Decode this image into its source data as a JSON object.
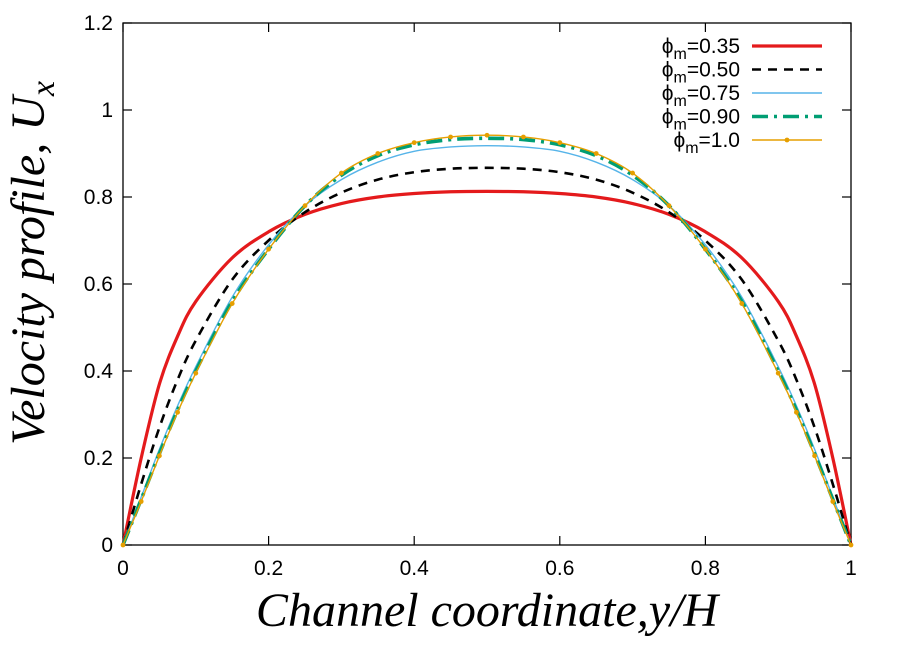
{
  "chart_data": {
    "type": "line",
    "xlabel": "Channel coordinate,y/H",
    "ylabel_main": "Velocity profile, U",
    "ylabel_sub": "x",
    "xlim": [
      0,
      1
    ],
    "ylim": [
      0,
      1.2
    ],
    "xticks": [
      "0",
      "0.2",
      "0.4",
      "0.6",
      "0.8",
      "1"
    ],
    "yticks": [
      "0",
      "0.2",
      "0.4",
      "0.6",
      "0.8",
      "1",
      "1.2"
    ],
    "grid": false,
    "legend_position": "top-right",
    "x": [
      0,
      0.025,
      0.05,
      0.075,
      0.1,
      0.15,
      0.2,
      0.25,
      0.3,
      0.35,
      0.4,
      0.45,
      0.5,
      0.55,
      0.6,
      0.65,
      0.7,
      0.75,
      0.8,
      0.85,
      0.9,
      0.925,
      0.95,
      0.975,
      1
    ],
    "series": [
      {
        "name_symbol": "ϕ",
        "name_sub": "m",
        "name_value": "=0.35",
        "color": "#e41a1c",
        "style": "solid",
        "values": [
          0,
          0.2,
          0.37,
          0.48,
          0.56,
          0.66,
          0.72,
          0.76,
          0.785,
          0.8,
          0.808,
          0.812,
          0.813,
          0.812,
          0.808,
          0.8,
          0.785,
          0.76,
          0.72,
          0.66,
          0.56,
          0.48,
          0.37,
          0.2,
          0
        ]
      },
      {
        "name_symbol": "ϕ",
        "name_sub": "m",
        "name_value": "=0.50",
        "color": "#000000",
        "style": "dashed",
        "values": [
          0,
          0.14,
          0.27,
          0.38,
          0.47,
          0.61,
          0.7,
          0.765,
          0.81,
          0.84,
          0.857,
          0.865,
          0.867,
          0.865,
          0.857,
          0.84,
          0.81,
          0.765,
          0.7,
          0.61,
          0.47,
          0.38,
          0.27,
          0.14,
          0
        ]
      },
      {
        "name_symbol": "ϕ",
        "name_sub": "m",
        "name_value": "=0.75",
        "color": "#56b4e9",
        "style": "thin",
        "values": [
          0,
          0.11,
          0.22,
          0.32,
          0.41,
          0.57,
          0.69,
          0.78,
          0.84,
          0.88,
          0.905,
          0.915,
          0.918,
          0.915,
          0.905,
          0.88,
          0.84,
          0.78,
          0.69,
          0.57,
          0.41,
          0.32,
          0.22,
          0.11,
          0
        ]
      },
      {
        "name_symbol": "ϕ",
        "name_sub": "m",
        "name_value": "=0.90",
        "color": "#009e73",
        "style": "dashdot",
        "values": [
          0,
          0.105,
          0.21,
          0.31,
          0.4,
          0.56,
          0.68,
          0.78,
          0.85,
          0.895,
          0.92,
          0.932,
          0.935,
          0.932,
          0.92,
          0.895,
          0.85,
          0.78,
          0.68,
          0.56,
          0.4,
          0.31,
          0.21,
          0.105,
          0
        ]
      },
      {
        "name_symbol": "ϕ",
        "name_sub": "m",
        "name_value": "=1.0",
        "color": "#e69f00",
        "style": "solid-points",
        "values": [
          0,
          0.1,
          0.205,
          0.305,
          0.395,
          0.555,
          0.68,
          0.78,
          0.855,
          0.9,
          0.925,
          0.938,
          0.942,
          0.938,
          0.925,
          0.9,
          0.855,
          0.78,
          0.68,
          0.555,
          0.395,
          0.305,
          0.205,
          0.1,
          0
        ]
      }
    ]
  }
}
